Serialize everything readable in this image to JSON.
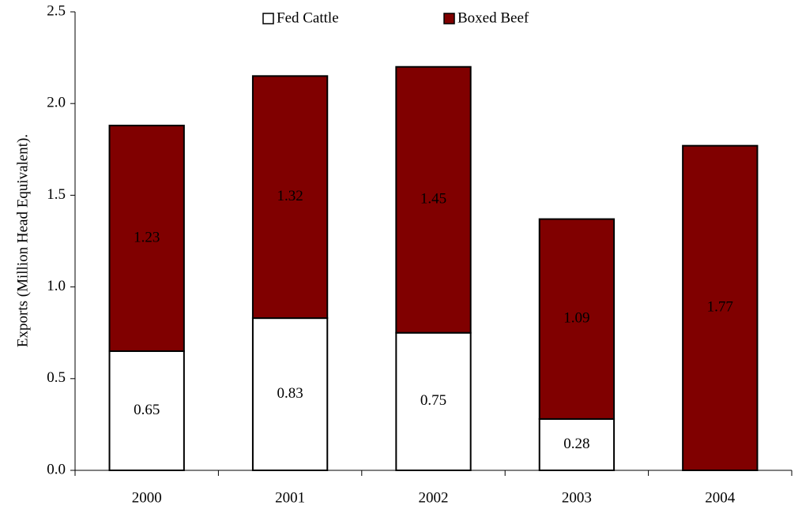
{
  "chart_data": {
    "type": "stacked-bar",
    "y_label": "Exports (Million Head Equivalent).",
    "categories": [
      "2000",
      "2001",
      "2002",
      "2003",
      "2004"
    ],
    "series": [
      {
        "name": "Fed Cattle",
        "color": "#ffffff",
        "values": [
          0.65,
          0.83,
          0.75,
          0.28,
          null
        ]
      },
      {
        "name": "Boxed Beef",
        "color": "#800000",
        "values": [
          1.23,
          1.32,
          1.45,
          1.09,
          1.77
        ]
      }
    ],
    "ylim": [
      0,
      2.5
    ],
    "yticks": [
      {
        "value": 0,
        "label": "0.0"
      },
      0.5,
      {
        "value": 1,
        "label": "1.0"
      },
      1.5,
      {
        "value": 2,
        "label": "2.0"
      },
      2.5
    ],
    "legend": "top"
  }
}
